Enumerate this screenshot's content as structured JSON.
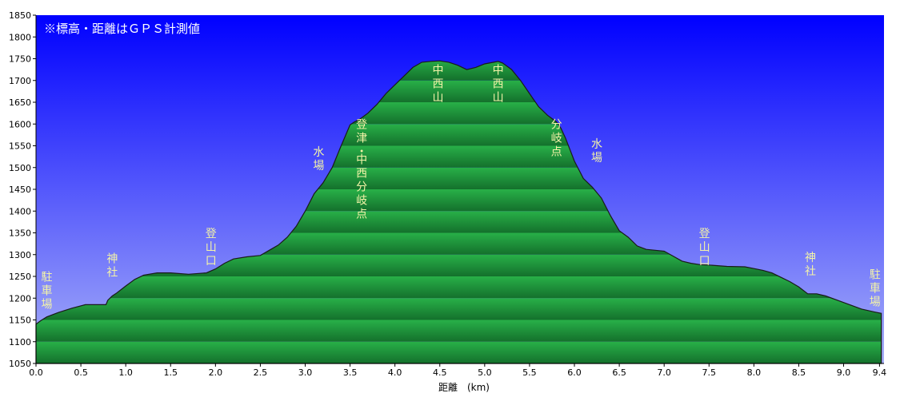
{
  "chart_data": {
    "type": "area",
    "title": "",
    "note": "※標高・距離はＧＰＳ計測値",
    "xlabel": "距離　(km)",
    "ylabel": "",
    "xlim": [
      0,
      9.45
    ],
    "ylim": [
      1050,
      1850
    ],
    "xticks": [
      "0.0",
      "0.5",
      "1.0",
      "1.5",
      "2.0",
      "2.5",
      "3.0",
      "3.5",
      "4.0",
      "4.5",
      "5.0",
      "5.5",
      "6.0",
      "6.5",
      "7.0",
      "7.5",
      "8.0",
      "8.5",
      "9.0",
      "9.4"
    ],
    "xtick_values": [
      0,
      0.5,
      1,
      1.5,
      2,
      2.5,
      3,
      3.5,
      4,
      4.5,
      5,
      5.5,
      6,
      6.5,
      7,
      7.5,
      8,
      8.5,
      9,
      9.4
    ],
    "yticks": [
      1050,
      1100,
      1150,
      1200,
      1250,
      1300,
      1350,
      1400,
      1450,
      1500,
      1550,
      1600,
      1650,
      1700,
      1750,
      1800,
      1850
    ],
    "grid": true,
    "colors": {
      "sky_top": "#0000ff",
      "sky_bottom": "#a8b0f8",
      "fill_light": "#28b048",
      "fill_dark": "#14702c",
      "outline": "#1a1a1a",
      "annotation": "#f3f3a8"
    },
    "series": [
      {
        "x": [
          0,
          0.05,
          0.12,
          0.25,
          0.4,
          0.55,
          0.7,
          0.78,
          0.8,
          0.85,
          0.9,
          1.0,
          1.1,
          1.2,
          1.35,
          1.5,
          1.7,
          1.9,
          2.0,
          2.1,
          2.2,
          2.35,
          2.5,
          2.6,
          2.7,
          2.8,
          2.9,
          3.0,
          3.1,
          3.2,
          3.3,
          3.4,
          3.5,
          3.55,
          3.6,
          3.7,
          3.8,
          3.9,
          4.0,
          4.1,
          4.2,
          4.3,
          4.4,
          4.5,
          4.6,
          4.7,
          4.8,
          4.9,
          5.0,
          5.1,
          5.15,
          5.2,
          5.3,
          5.4,
          5.5,
          5.6,
          5.7,
          5.8,
          5.85,
          5.9,
          6.0,
          6.1,
          6.2,
          6.3,
          6.4,
          6.5,
          6.6,
          6.7,
          6.8,
          7.0,
          7.2,
          7.3,
          7.4,
          7.5,
          7.7,
          7.9,
          8.0,
          8.1,
          8.2,
          8.3,
          8.4,
          8.5,
          8.6,
          8.7,
          8.8,
          9.0,
          9.2,
          9.35,
          9.42
        ],
        "y": [
          1140,
          1148,
          1157,
          1167,
          1177,
          1185,
          1185,
          1185,
          1195,
          1205,
          1212,
          1228,
          1243,
          1253,
          1258,
          1258,
          1255,
          1258,
          1267,
          1280,
          1290,
          1295,
          1298,
          1310,
          1322,
          1340,
          1365,
          1400,
          1440,
          1465,
          1500,
          1550,
          1598,
          1605,
          1610,
          1625,
          1645,
          1670,
          1690,
          1710,
          1730,
          1742,
          1744,
          1745,
          1742,
          1735,
          1725,
          1730,
          1738,
          1742,
          1744,
          1740,
          1725,
          1700,
          1670,
          1640,
          1620,
          1605,
          1590,
          1568,
          1515,
          1475,
          1455,
          1430,
          1390,
          1355,
          1340,
          1320,
          1312,
          1308,
          1285,
          1280,
          1277,
          1276,
          1273,
          1272,
          1268,
          1264,
          1258,
          1248,
          1238,
          1226,
          1210,
          1210,
          1205,
          1190,
          1175,
          1168,
          1165
        ]
      }
    ],
    "annotations": [
      {
        "text": "駐車場",
        "x": 0.12,
        "y": 1240
      },
      {
        "text": "神社",
        "x": 0.85,
        "y": 1282
      },
      {
        "text": "登山口",
        "x": 1.95,
        "y": 1340
      },
      {
        "text": "水場",
        "x": 3.15,
        "y": 1527
      },
      {
        "text": "登津・中西分岐点",
        "x": 3.63,
        "y": 1590
      },
      {
        "text": "中西山",
        "x": 4.48,
        "y": 1715
      },
      {
        "text": "中西山",
        "x": 5.15,
        "y": 1715
      },
      {
        "text": "分岐点",
        "x": 5.8,
        "y": 1590
      },
      {
        "text": "水場",
        "x": 6.25,
        "y": 1545
      },
      {
        "text": "登山口",
        "x": 7.45,
        "y": 1340
      },
      {
        "text": "神社",
        "x": 8.63,
        "y": 1285
      },
      {
        "text": "駐車場",
        "x": 9.35,
        "y": 1245
      }
    ]
  }
}
